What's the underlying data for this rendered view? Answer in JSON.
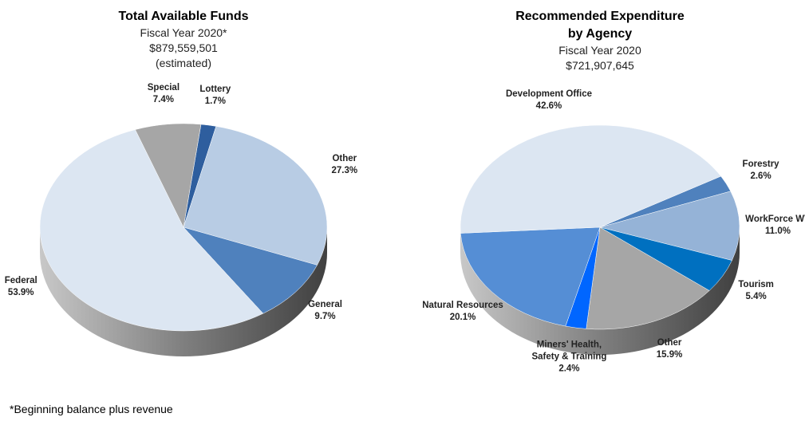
{
  "chart_data": [
    {
      "type": "pie",
      "title": "Total Available Funds",
      "subtitle": [
        "Fiscal Year 2020*",
        "$879,559,501",
        "(estimated)"
      ],
      "categories": [
        "Lottery",
        "Other",
        "General",
        "Federal",
        "Special"
      ],
      "values": [
        1.7,
        27.3,
        9.7,
        53.9,
        7.4
      ],
      "value_labels": [
        "1.7%",
        "27.3%",
        "9.7%",
        "53.9%",
        "7.4%"
      ],
      "colors": [
        "#2e5e9e",
        "#b8cce4",
        "#4f81bd",
        "#dce6f2",
        "#a6a6a6"
      ]
    },
    {
      "type": "pie",
      "title": "Recommended Expenditure by Agency",
      "subtitle": [
        "Fiscal Year 2020",
        "$721,907,645"
      ],
      "categories": [
        "Forestry",
        "WorkForce WV",
        "Tourism",
        "Other",
        "Miners' Health, Safety & Training",
        "Natural Resources",
        "Development Office"
      ],
      "values": [
        2.6,
        11.0,
        5.4,
        15.9,
        2.4,
        20.1,
        42.6
      ],
      "value_labels": [
        "2.6%",
        "11.0%",
        "5.4%",
        "15.9%",
        "2.4%",
        "20.1%",
        "42.6%"
      ],
      "colors": [
        "#4f81bd",
        "#95b3d7",
        "#0070c0",
        "#a6a6a6",
        "#0066ff",
        "#558ed5",
        "#dce6f2"
      ]
    }
  ],
  "footnote": "*Beginning balance plus revenue"
}
